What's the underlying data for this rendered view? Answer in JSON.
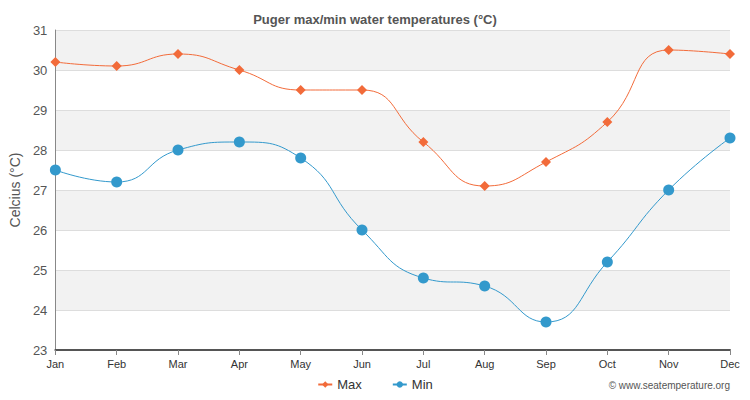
{
  "chart_data": {
    "type": "line",
    "title": "Puger max/min water temperatures (°C)",
    "y_label": "Celcius (°C)",
    "categories": [
      "Jan",
      "Feb",
      "Mar",
      "Apr",
      "May",
      "Jun",
      "Jul",
      "Aug",
      "Sep",
      "Oct",
      "Nov",
      "Dec"
    ],
    "series": [
      {
        "name": "Max",
        "color": "#f26b3a",
        "marker": "diamond",
        "line_style": "solid",
        "values": [
          30.2,
          30.1,
          30.4,
          30.0,
          29.5,
          29.5,
          28.2,
          27.1,
          27.7,
          28.7,
          30.5,
          30.4
        ]
      },
      {
        "name": "Min",
        "color": "#3399cc",
        "marker": "circle",
        "line_style": "solid",
        "values": [
          27.5,
          27.2,
          28.0,
          28.2,
          27.8,
          26.0,
          24.8,
          24.6,
          23.7,
          25.2,
          27.0,
          28.3
        ]
      }
    ],
    "ylim": [
      23,
      31
    ],
    "yticks": [
      23,
      24,
      25,
      26,
      27,
      28,
      29,
      30,
      31
    ],
    "grid": true,
    "legend": "bottom",
    "annotations": [
      "© www.seatemperature.org"
    ]
  }
}
